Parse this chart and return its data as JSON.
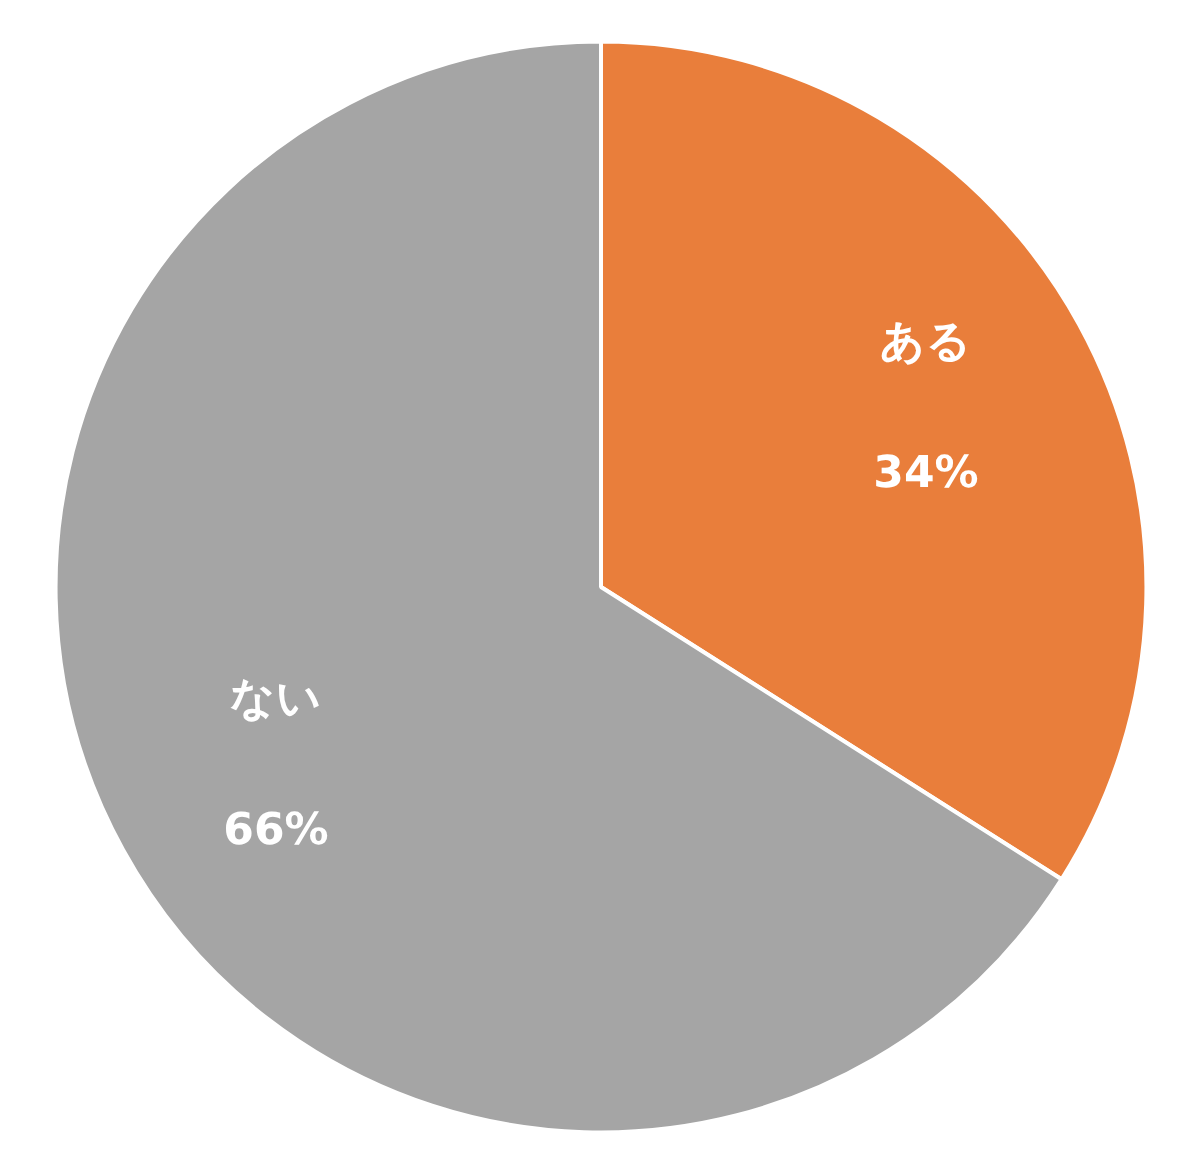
{
  "chart_data": {
    "type": "pie",
    "categories": [
      "ある",
      "ない"
    ],
    "values": [
      34,
      66
    ],
    "colors": [
      "#e97e3b",
      "#a5a5a5"
    ],
    "value_labels": [
      "34%",
      "66%"
    ]
  }
}
